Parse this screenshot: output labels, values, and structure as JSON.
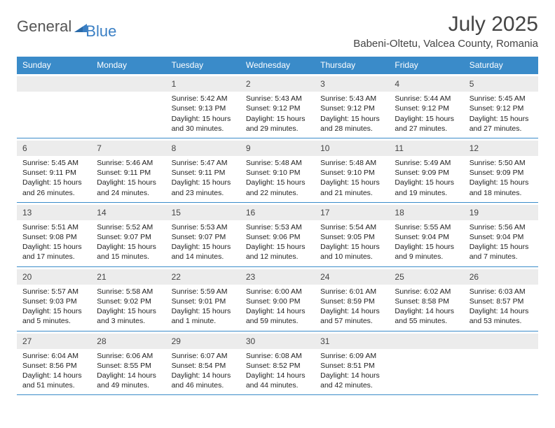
{
  "logo": {
    "part1": "General",
    "part2": "Blue"
  },
  "title": "July 2025",
  "location": "Babeni-Oltetu, Valcea County, Romania",
  "colors": {
    "header_bg": "#3a8bc9",
    "header_text": "#ffffff",
    "daynum_bg": "#ececec",
    "border": "#3a8bc9",
    "logo_blue": "#3a7fc4",
    "logo_gray": "#555555",
    "text": "#222222"
  },
  "day_names": [
    "Sunday",
    "Monday",
    "Tuesday",
    "Wednesday",
    "Thursday",
    "Friday",
    "Saturday"
  ],
  "weeks": [
    [
      {
        "n": "",
        "sr": "",
        "ss": "",
        "dl": ""
      },
      {
        "n": "",
        "sr": "",
        "ss": "",
        "dl": ""
      },
      {
        "n": "1",
        "sr": "Sunrise: 5:42 AM",
        "ss": "Sunset: 9:13 PM",
        "dl": "Daylight: 15 hours and 30 minutes."
      },
      {
        "n": "2",
        "sr": "Sunrise: 5:43 AM",
        "ss": "Sunset: 9:12 PM",
        "dl": "Daylight: 15 hours and 29 minutes."
      },
      {
        "n": "3",
        "sr": "Sunrise: 5:43 AM",
        "ss": "Sunset: 9:12 PM",
        "dl": "Daylight: 15 hours and 28 minutes."
      },
      {
        "n": "4",
        "sr": "Sunrise: 5:44 AM",
        "ss": "Sunset: 9:12 PM",
        "dl": "Daylight: 15 hours and 27 minutes."
      },
      {
        "n": "5",
        "sr": "Sunrise: 5:45 AM",
        "ss": "Sunset: 9:12 PM",
        "dl": "Daylight: 15 hours and 27 minutes."
      }
    ],
    [
      {
        "n": "6",
        "sr": "Sunrise: 5:45 AM",
        "ss": "Sunset: 9:11 PM",
        "dl": "Daylight: 15 hours and 26 minutes."
      },
      {
        "n": "7",
        "sr": "Sunrise: 5:46 AM",
        "ss": "Sunset: 9:11 PM",
        "dl": "Daylight: 15 hours and 24 minutes."
      },
      {
        "n": "8",
        "sr": "Sunrise: 5:47 AM",
        "ss": "Sunset: 9:11 PM",
        "dl": "Daylight: 15 hours and 23 minutes."
      },
      {
        "n": "9",
        "sr": "Sunrise: 5:48 AM",
        "ss": "Sunset: 9:10 PM",
        "dl": "Daylight: 15 hours and 22 minutes."
      },
      {
        "n": "10",
        "sr": "Sunrise: 5:48 AM",
        "ss": "Sunset: 9:10 PM",
        "dl": "Daylight: 15 hours and 21 minutes."
      },
      {
        "n": "11",
        "sr": "Sunrise: 5:49 AM",
        "ss": "Sunset: 9:09 PM",
        "dl": "Daylight: 15 hours and 19 minutes."
      },
      {
        "n": "12",
        "sr": "Sunrise: 5:50 AM",
        "ss": "Sunset: 9:09 PM",
        "dl": "Daylight: 15 hours and 18 minutes."
      }
    ],
    [
      {
        "n": "13",
        "sr": "Sunrise: 5:51 AM",
        "ss": "Sunset: 9:08 PM",
        "dl": "Daylight: 15 hours and 17 minutes."
      },
      {
        "n": "14",
        "sr": "Sunrise: 5:52 AM",
        "ss": "Sunset: 9:07 PM",
        "dl": "Daylight: 15 hours and 15 minutes."
      },
      {
        "n": "15",
        "sr": "Sunrise: 5:53 AM",
        "ss": "Sunset: 9:07 PM",
        "dl": "Daylight: 15 hours and 14 minutes."
      },
      {
        "n": "16",
        "sr": "Sunrise: 5:53 AM",
        "ss": "Sunset: 9:06 PM",
        "dl": "Daylight: 15 hours and 12 minutes."
      },
      {
        "n": "17",
        "sr": "Sunrise: 5:54 AM",
        "ss": "Sunset: 9:05 PM",
        "dl": "Daylight: 15 hours and 10 minutes."
      },
      {
        "n": "18",
        "sr": "Sunrise: 5:55 AM",
        "ss": "Sunset: 9:04 PM",
        "dl": "Daylight: 15 hours and 9 minutes."
      },
      {
        "n": "19",
        "sr": "Sunrise: 5:56 AM",
        "ss": "Sunset: 9:04 PM",
        "dl": "Daylight: 15 hours and 7 minutes."
      }
    ],
    [
      {
        "n": "20",
        "sr": "Sunrise: 5:57 AM",
        "ss": "Sunset: 9:03 PM",
        "dl": "Daylight: 15 hours and 5 minutes."
      },
      {
        "n": "21",
        "sr": "Sunrise: 5:58 AM",
        "ss": "Sunset: 9:02 PM",
        "dl": "Daylight: 15 hours and 3 minutes."
      },
      {
        "n": "22",
        "sr": "Sunrise: 5:59 AM",
        "ss": "Sunset: 9:01 PM",
        "dl": "Daylight: 15 hours and 1 minute."
      },
      {
        "n": "23",
        "sr": "Sunrise: 6:00 AM",
        "ss": "Sunset: 9:00 PM",
        "dl": "Daylight: 14 hours and 59 minutes."
      },
      {
        "n": "24",
        "sr": "Sunrise: 6:01 AM",
        "ss": "Sunset: 8:59 PM",
        "dl": "Daylight: 14 hours and 57 minutes."
      },
      {
        "n": "25",
        "sr": "Sunrise: 6:02 AM",
        "ss": "Sunset: 8:58 PM",
        "dl": "Daylight: 14 hours and 55 minutes."
      },
      {
        "n": "26",
        "sr": "Sunrise: 6:03 AM",
        "ss": "Sunset: 8:57 PM",
        "dl": "Daylight: 14 hours and 53 minutes."
      }
    ],
    [
      {
        "n": "27",
        "sr": "Sunrise: 6:04 AM",
        "ss": "Sunset: 8:56 PM",
        "dl": "Daylight: 14 hours and 51 minutes."
      },
      {
        "n": "28",
        "sr": "Sunrise: 6:06 AM",
        "ss": "Sunset: 8:55 PM",
        "dl": "Daylight: 14 hours and 49 minutes."
      },
      {
        "n": "29",
        "sr": "Sunrise: 6:07 AM",
        "ss": "Sunset: 8:54 PM",
        "dl": "Daylight: 14 hours and 46 minutes."
      },
      {
        "n": "30",
        "sr": "Sunrise: 6:08 AM",
        "ss": "Sunset: 8:52 PM",
        "dl": "Daylight: 14 hours and 44 minutes."
      },
      {
        "n": "31",
        "sr": "Sunrise: 6:09 AM",
        "ss": "Sunset: 8:51 PM",
        "dl": "Daylight: 14 hours and 42 minutes."
      },
      {
        "n": "",
        "sr": "",
        "ss": "",
        "dl": ""
      },
      {
        "n": "",
        "sr": "",
        "ss": "",
        "dl": ""
      }
    ]
  ]
}
